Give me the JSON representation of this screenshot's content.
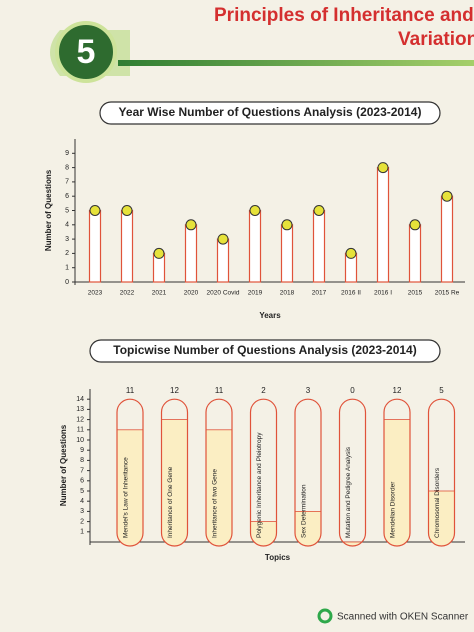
{
  "header": {
    "chapter": "5",
    "title": [
      "Principles of Inheritance and",
      "Variation"
    ]
  },
  "chart_data": [
    {
      "type": "bar",
      "title": "Year Wise Number of Questions Analysis (2023-2014)",
      "categories": [
        "2023",
        "2022",
        "2021",
        "2020",
        "2020 Covid",
        "2019",
        "2018",
        "2017",
        "2016 II",
        "2016 I",
        "2015",
        "2015 Re"
      ],
      "values": [
        5,
        5,
        2,
        4,
        3,
        5,
        4,
        5,
        2,
        8,
        4,
        6
      ],
      "color": "#e0533a",
      "fill_color": "#ffffff",
      "marker_color": "#e6e23a",
      "markers": true,
      "ylim": [
        0,
        10
      ],
      "yticks": [
        0,
        1,
        2,
        3,
        4,
        5,
        6,
        7,
        8,
        9
      ],
      "x_label": "Years",
      "y_label": "Number of Questions"
    },
    {
      "type": "bar",
      "title": "Topicwise Number of Questions Analysis (2023-2014)",
      "categories": [
        "Mendel's Law of Inheritance",
        "Inheritance of One Gene",
        "Inheritance of two Gene",
        "Polygenic Inheritance and Pleiotropy",
        "Sex Determination",
        "Mutation and Pedigree Analysis",
        "Mendelian Disorder",
        "Chromosomal Disorders"
      ],
      "values": [
        11,
        12,
        11,
        2,
        3,
        0,
        12,
        5
      ],
      "color": "#e0533a",
      "fill_color": "#fbeec3",
      "data_labels": true,
      "label_orientation": "vertical",
      "ylim": [
        0,
        15
      ],
      "yticks": [
        1,
        2,
        3,
        4,
        5,
        6,
        7,
        8,
        9,
        10,
        11,
        12,
        13,
        14
      ],
      "x_label": "Topics",
      "y_label": "Number of Questions"
    }
  ],
  "footer": {
    "text": "Scanned with OKEN Scanner"
  }
}
